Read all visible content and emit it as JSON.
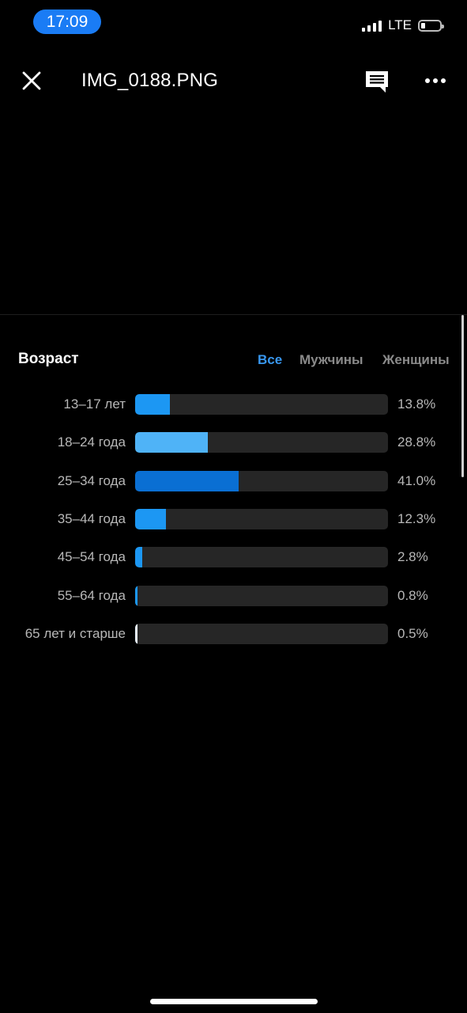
{
  "status_bar": {
    "time": "17:09",
    "network": "LTE",
    "signal_bars": 4,
    "battery_level": 0.2
  },
  "header": {
    "title": "IMG_0188.PNG",
    "icons": [
      "close-icon",
      "comment-icon",
      "more-icon"
    ]
  },
  "section": {
    "title": "Возраст",
    "tabs": [
      {
        "label": "Все",
        "active": true
      },
      {
        "label": "Мужчины",
        "active": false
      },
      {
        "label": "Женщины",
        "active": false
      }
    ]
  },
  "colors": {
    "accent": "#3897f0",
    "bar_track": "#262626"
  },
  "chart_data": {
    "type": "bar",
    "categories": [
      "13–17 лет",
      "18–24 года",
      "25–34 года",
      "35–44 года",
      "45–54 года",
      "55–64 года",
      "65 лет и старше"
    ],
    "values": [
      13.8,
      28.8,
      41.0,
      12.3,
      2.8,
      0.8,
      0.5
    ],
    "value_labels": [
      "13.8%",
      "28.8%",
      "41.0%",
      "12.3%",
      "2.8%",
      "0.8%",
      "0.5%"
    ],
    "bar_colors": [
      "#1c97f3",
      "#4fb3f7",
      "#0a6fd3",
      "#1c97f3",
      "#1c97f3",
      "#1c97f3",
      "#e8f4ff"
    ],
    "xlim": [
      0,
      100
    ]
  }
}
